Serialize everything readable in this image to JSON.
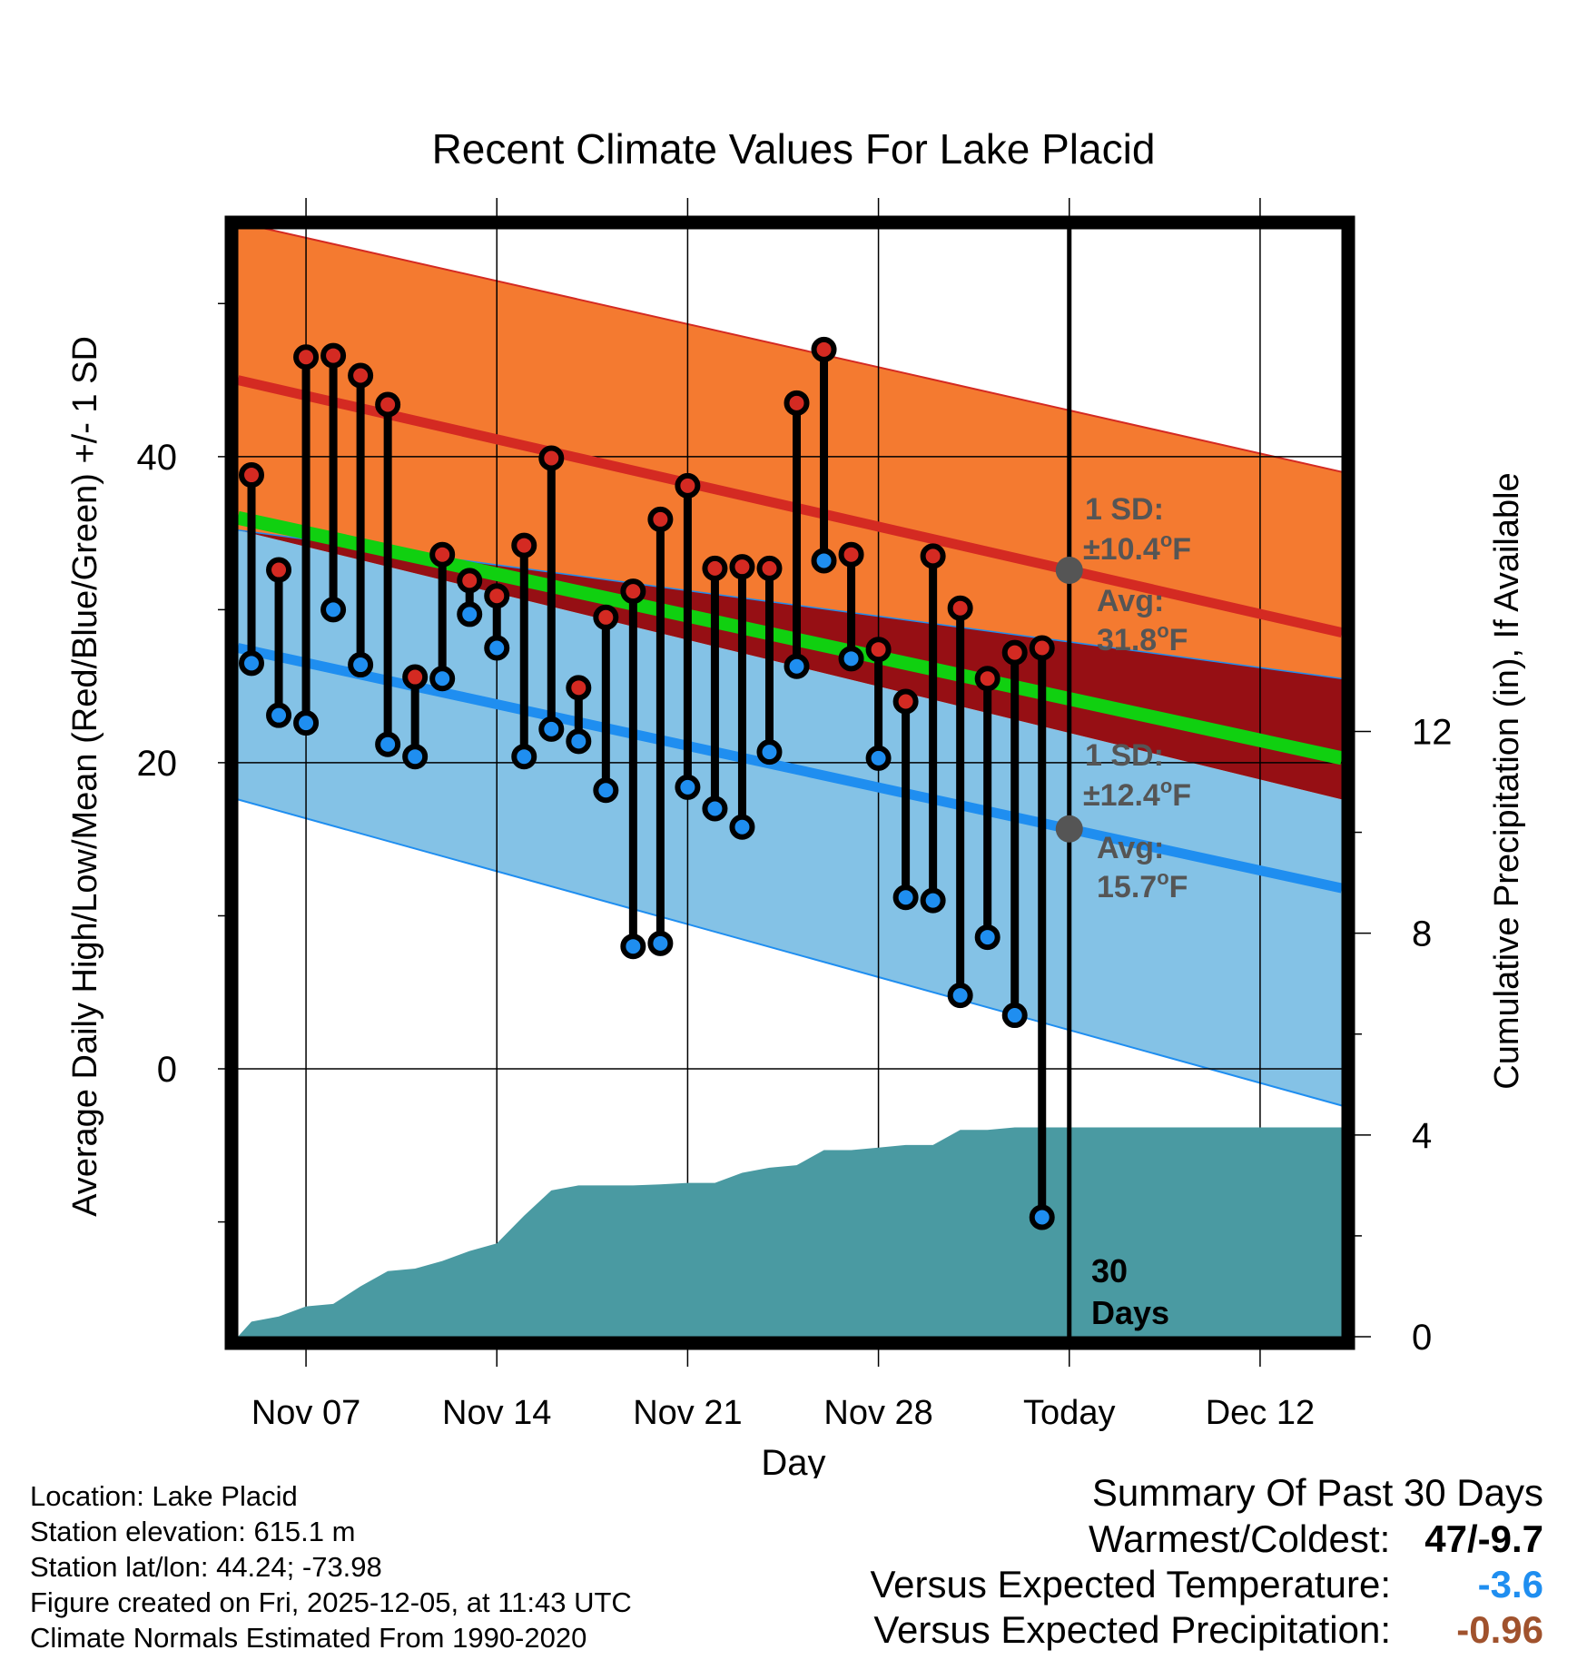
{
  "chart_data": {
    "type": "line",
    "title": "Recent Climate Values For Lake Placid",
    "xlabel": "Day",
    "ylabel": "Average Daily High/Low/Mean (Red/Blue/Green) +/- 1 SD",
    "y2label": "Cumulative Precipitation (in), If Available",
    "ylim": [
      -17.5,
      55
    ],
    "y2lim": [
      0,
      22
    ],
    "y_ticks": [
      "0",
      "20",
      "40"
    ],
    "y_tick_values": [
      0,
      20,
      40
    ],
    "y2_ticks": [
      "0",
      "4",
      "8",
      "12"
    ],
    "y2_tick_values": [
      0,
      4,
      8,
      12
    ],
    "xlim": [
      -1.5,
      39
    ],
    "x_ticks": [
      {
        "day": 1,
        "label": "Nov 07"
      },
      {
        "day": 8,
        "label": "Nov 14"
      },
      {
        "day": 15,
        "label": "Nov 21"
      },
      {
        "day": 22,
        "label": "Nov 28"
      },
      {
        "day": 29,
        "label": "Today"
      },
      {
        "day": 36,
        "label": "Dec 12"
      }
    ],
    "today_day": 29,
    "today_label": "30\nDays",
    "normals": {
      "days": [
        -1.5,
        39
      ],
      "high_avg": [
        45,
        28.5
      ],
      "high_upper": [
        55.3,
        39
      ],
      "low_avg": [
        27.5,
        11.8
      ],
      "low_lower": [
        17.6,
        -2.4
      ],
      "mean_avg": [
        36,
        20.3
      ],
      "mean_lower": [
        35.2,
        17.6
      ],
      "mean_upper": [
        35.2,
        25.5
      ]
    },
    "observations": {
      "days": [
        -1,
        0,
        1,
        2,
        3,
        4,
        5,
        6,
        7,
        8,
        9,
        10,
        11,
        12,
        13,
        14,
        15,
        16,
        17,
        18,
        19,
        20,
        21,
        22,
        23,
        24,
        25,
        26,
        27,
        28
      ],
      "high": [
        38.8,
        32.6,
        46.5,
        46.6,
        45.3,
        43.4,
        25.6,
        33.6,
        31.9,
        30.9,
        34.2,
        39.9,
        24.9,
        29.5,
        31.2,
        35.9,
        38.1,
        32.7,
        32.8,
        32.7,
        43.5,
        47.0,
        33.6,
        27.4,
        24.0,
        33.5,
        30.1,
        25.5,
        27.2,
        27.5
      ],
      "low": [
        26.5,
        23.1,
        22.6,
        30.0,
        26.4,
        21.2,
        20.4,
        25.5,
        29.7,
        27.5,
        20.4,
        22.2,
        21.4,
        18.2,
        8.0,
        8.2,
        18.4,
        17.0,
        15.8,
        20.7,
        26.3,
        33.2,
        26.8,
        20.3,
        11.2,
        11.0,
        4.8,
        8.6,
        3.5,
        -9.7
      ]
    },
    "precipitation": {
      "days": [
        -1.5,
        -1,
        0,
        1,
        2,
        3,
        4,
        5,
        6,
        7,
        8,
        9,
        10,
        11,
        12,
        13,
        14,
        15,
        16,
        17,
        18,
        19,
        20,
        21,
        22,
        23,
        24,
        25,
        26,
        27,
        28,
        29,
        39
      ],
      "cumulative": [
        0,
        0.3,
        0.4,
        0.6,
        0.65,
        1.0,
        1.3,
        1.35,
        1.5,
        1.7,
        1.85,
        2.4,
        2.9,
        3.0,
        3.0,
        3.0,
        3.02,
        3.05,
        3.05,
        3.25,
        3.35,
        3.4,
        3.7,
        3.7,
        3.75,
        3.8,
        3.8,
        4.1,
        4.1,
        4.15,
        4.15,
        4.15,
        4.15
      ]
    },
    "annotations": {
      "high_sd": "1 SD:",
      "high_sd_value": "±10.4",
      "high_avg": "Avg:",
      "high_avg_value": "31.8",
      "low_sd": "1 SD:",
      "low_sd_value": "±12.4",
      "low_avg": "Avg:",
      "low_avg_value": "15.7",
      "unit": "F",
      "degree": "o"
    },
    "colors": {
      "high_band": "#f47a30",
      "high_line": "#d42a22",
      "low_band": "#84c2e6",
      "low_line": "#1f8ef0",
      "mean_band": "#960f14",
      "mean_line": "#10d010",
      "precip": "#4a9aa2",
      "high_marker": "#d42a22",
      "low_marker": "#1f8ef0",
      "annotation": "#555555"
    }
  },
  "info": {
    "location": "Location: Lake Placid",
    "elevation": "Station elevation: 615.1 m",
    "latlon": "Station lat/lon: 44.24; -73.98",
    "created": "Figure created on Fri, 2025-12-05, at 11:43 UTC",
    "normals": "Climate Normals Estimated From 1990-2020"
  },
  "summary": {
    "title": "Summary Of Past 30 Days",
    "warm_cold_label": "Warmest/Coldest:",
    "warm_cold_value": "47/-9.7",
    "temp_label": "Versus Expected Temperature:",
    "temp_value": "-3.6",
    "temp_color": "#1f8ef0",
    "precip_label": "Versus Expected Precipitation:",
    "precip_value": "-0.96",
    "precip_color": "#a0522d"
  }
}
